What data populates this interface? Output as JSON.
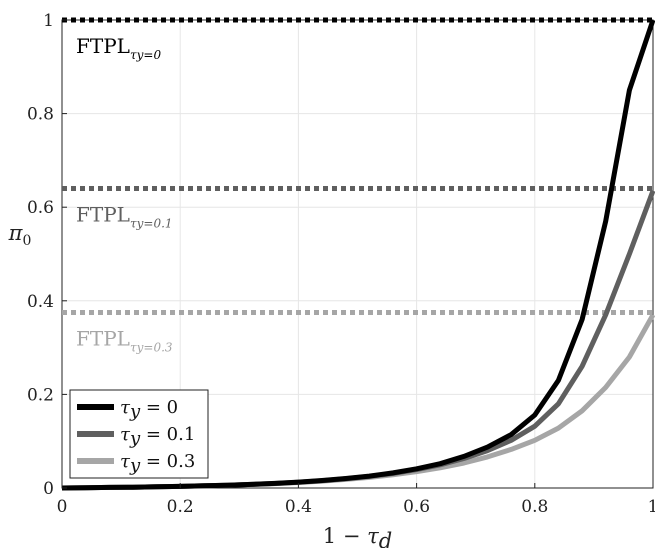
{
  "chart_data": {
    "type": "line",
    "xlabel": "1 − τ_d",
    "ylabel": "π_0",
    "xlim": [
      0,
      1
    ],
    "ylim": [
      0,
      1
    ],
    "xticks": [
      0,
      0.2,
      0.4,
      0.6,
      0.8,
      1
    ],
    "yticks": [
      0,
      0.2,
      0.4,
      0.6,
      0.8,
      1
    ],
    "xtick_labels": [
      "0",
      "0.2",
      "0.4",
      "0.6",
      "0.8",
      "1"
    ],
    "ytick_labels": [
      "0",
      "0.2",
      "0.4",
      "0.6",
      "0.8",
      "1"
    ],
    "grid": true,
    "legend_position": "bottom-left",
    "x": [
      0,
      0.04,
      0.08,
      0.12,
      0.16,
      0.2,
      0.24,
      0.28,
      0.32,
      0.36,
      0.4,
      0.44,
      0.48,
      0.52,
      0.56,
      0.6,
      0.64,
      0.68,
      0.72,
      0.76,
      0.8,
      0.84,
      0.88,
      0.92,
      0.96,
      1
    ],
    "series": [
      {
        "name": "τ_y = 0",
        "color": "#000000",
        "values": [
          0,
          0.0006,
          0.0012,
          0.0018,
          0.0025,
          0.0035,
          0.0046,
          0.006,
          0.0077,
          0.0098,
          0.0125,
          0.016,
          0.0202,
          0.0255,
          0.0322,
          0.041,
          0.052,
          0.0675,
          0.0875,
          0.114,
          0.156,
          0.23,
          0.36,
          0.57,
          0.85,
          1.0
        ]
      },
      {
        "name": "τ_y = 0.1",
        "color": "#5f5f5f",
        "values": [
          0,
          0.0006,
          0.0012,
          0.0018,
          0.0025,
          0.0035,
          0.0046,
          0.006,
          0.0077,
          0.0097,
          0.0123,
          0.0156,
          0.0197,
          0.0247,
          0.0312,
          0.0395,
          0.0495,
          0.063,
          0.08,
          0.102,
          0.132,
          0.18,
          0.26,
          0.37,
          0.5,
          0.635
        ]
      },
      {
        "name": "τ_y = 0.3",
        "color": "#a6a6a6",
        "values": [
          0,
          0.0006,
          0.0012,
          0.0018,
          0.0025,
          0.0035,
          0.0045,
          0.0058,
          0.0074,
          0.0093,
          0.0117,
          0.0147,
          0.0183,
          0.0227,
          0.0282,
          0.035,
          0.0432,
          0.0535,
          0.0665,
          0.0825,
          0.102,
          0.128,
          0.165,
          0.215,
          0.28,
          0.37
        ]
      }
    ],
    "reference_lines": [
      {
        "label": "FTPL",
        "subscript": "τ_y=0",
        "y": 1.0,
        "color": "#000000"
      },
      {
        "label": "FTPL",
        "subscript": "τ_y=0.1",
        "y": 0.64,
        "color": "#5f5f5f"
      },
      {
        "label": "FTPL",
        "subscript": "τ_y=0.3",
        "y": 0.375,
        "color": "#a6a6a6"
      }
    ]
  }
}
